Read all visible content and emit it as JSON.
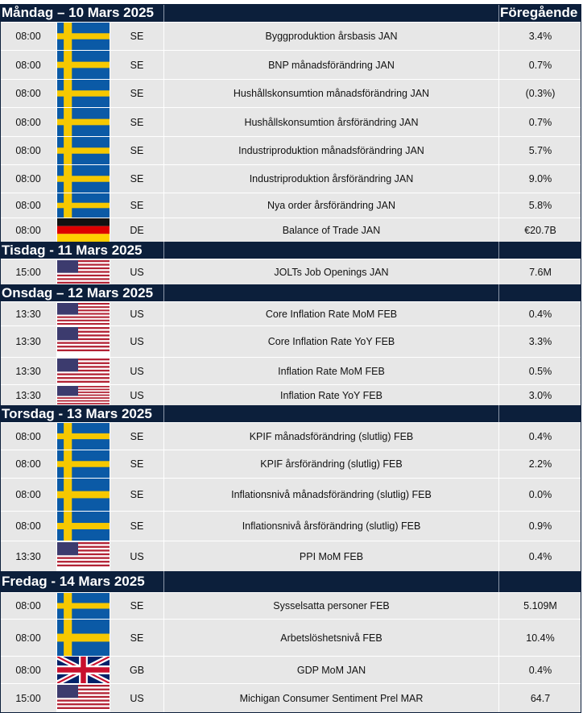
{
  "days": [
    {
      "title": "Måndag – 10 Mars 2025",
      "column_header": "Föregående",
      "rows": [
        {
          "time": "08:00",
          "country": "SE",
          "event": "Byggproduktion årsbasis JAN",
          "previous": "3.4%"
        },
        {
          "time": "08:00",
          "country": "SE",
          "event": "BNP månadsförändring JAN",
          "previous": "0.7%"
        },
        {
          "time": "08:00",
          "country": "SE",
          "event": "Hushållskonsumtion månadsförändring JAN",
          "previous": "(0.3%)"
        },
        {
          "time": "08:00",
          "country": "SE",
          "event": "Hushållskonsumtion årsförändring JAN",
          "previous": "0.7%"
        },
        {
          "time": "08:00",
          "country": "SE",
          "event": "Industriproduktion månadsförändring JAN",
          "previous": "5.7%"
        },
        {
          "time": "08:00",
          "country": "SE",
          "event": "Industriproduktion årsförändring JAN",
          "previous": "9.0%"
        },
        {
          "time": "08:00",
          "country": "SE",
          "event": "Nya order årsförändring JAN",
          "previous": "5.8%"
        },
        {
          "time": "08:00",
          "country": "DE",
          "event": "Balance of Trade JAN",
          "previous": "€20.7B"
        }
      ]
    },
    {
      "title": "Tisdag - 11 Mars 2025",
      "rows": [
        {
          "time": "15:00",
          "country": "US",
          "event": "JOLTs Job Openings JAN",
          "previous": "7.6M"
        }
      ]
    },
    {
      "title": "Onsdag – 12 Mars 2025",
      "rows": [
        {
          "time": "13:30",
          "country": "US",
          "event": "Core Inflation Rate MoM FEB",
          "previous": "0.4%"
        },
        {
          "time": "13:30",
          "country": "US",
          "event": "Core Inflation Rate YoY FEB",
          "previous": "3.3%"
        },
        {
          "time": "13:30",
          "country": "US",
          "event": "Inflation Rate MoM FEB",
          "previous": "0.5%"
        },
        {
          "time": "13:30",
          "country": "US",
          "event": "Inflation Rate YoY FEB",
          "previous": "3.0%"
        }
      ]
    },
    {
      "title": "Torsdag - 13 Mars 2025",
      "rows": [
        {
          "time": "08:00",
          "country": "SE",
          "event": "KPIF månadsförändring (slutlig) FEB",
          "previous": "0.4%"
        },
        {
          "time": "08:00",
          "country": "SE",
          "event": "KPIF årsförändring (slutlig) FEB",
          "previous": "2.2%"
        },
        {
          "time": "08:00",
          "country": "SE",
          "event": "Inflationsnivå månadsförändring (slutlig) FEB",
          "previous": "0.0%"
        },
        {
          "time": "08:00",
          "country": "SE",
          "event": "Inflationsnivå årsförändring (slutlig) FEB",
          "previous": "0.9%"
        },
        {
          "time": "13:30",
          "country": "US",
          "event": "PPI MoM FEB",
          "previous": "0.4%"
        }
      ]
    },
    {
      "title": "Fredag - 14 Mars 2025",
      "rows": [
        {
          "time": "08:00",
          "country": "SE",
          "event": "Sysselsatta personer FEB",
          "previous": "5.109M"
        },
        {
          "time": "08:00",
          "country": "SE",
          "event": "Arbetslöshetsnivå FEB",
          "previous": "10.4%"
        },
        {
          "time": "08:00",
          "country": "GB",
          "event": "GDP MoM JAN",
          "previous": "0.4%"
        },
        {
          "time": "15:00",
          "country": "US",
          "event": "Michigan Consumer Sentiment Prel MAR",
          "previous": "64.7"
        }
      ]
    }
  ]
}
